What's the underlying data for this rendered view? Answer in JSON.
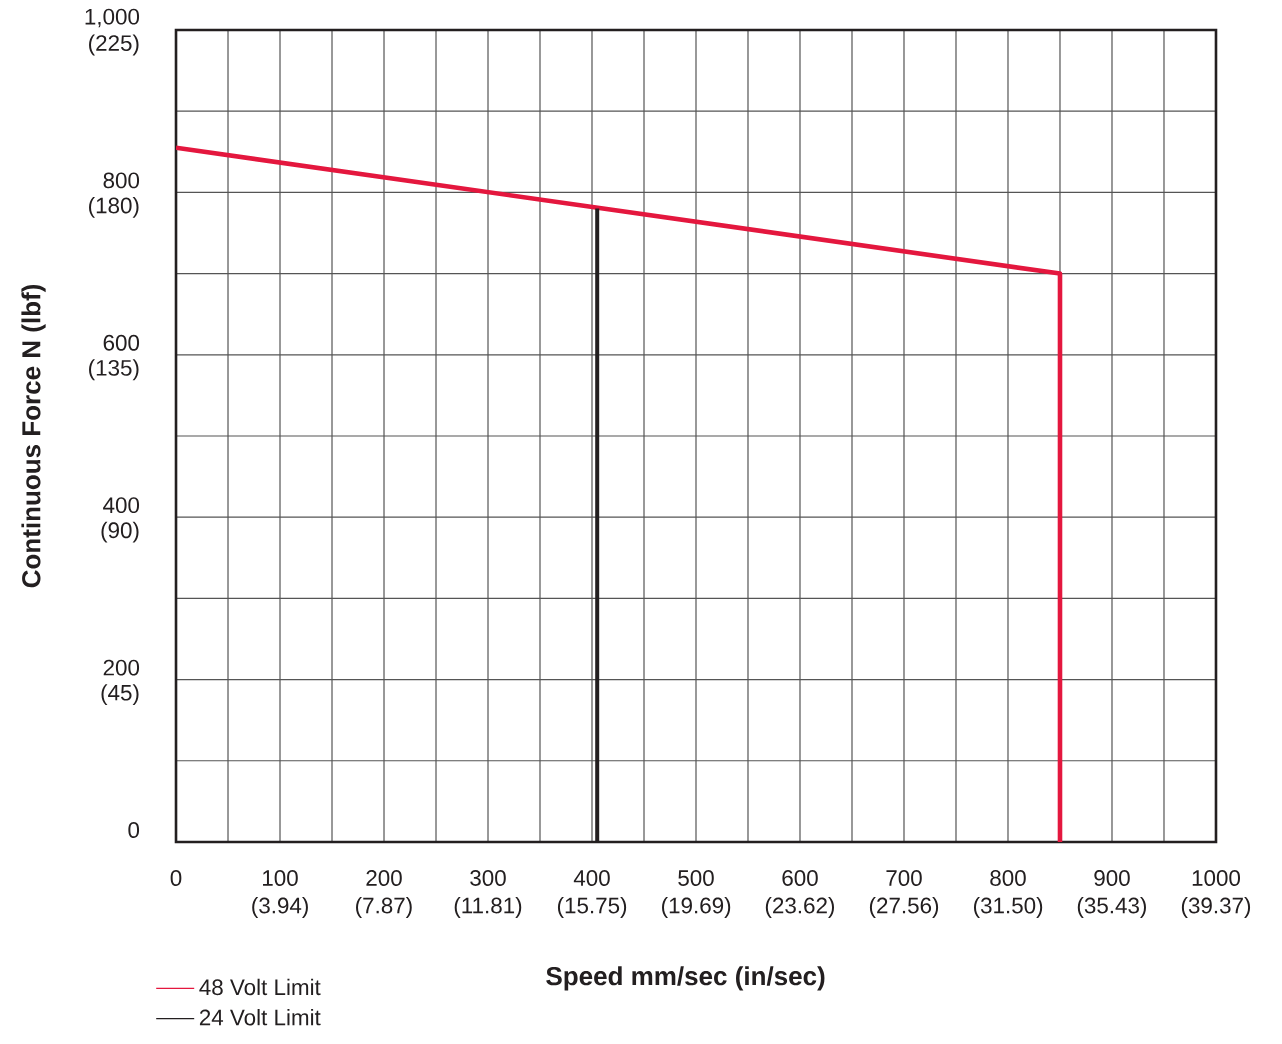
{
  "chart_data": {
    "type": "line",
    "xlabel": "Speed mm/sec (in/sec)",
    "ylabel": "Continuous Force N (lbf)",
    "series": [
      {
        "name": "48 Volt Limit",
        "color": "#e4173e",
        "x": [
          0,
          850,
          850
        ],
        "values": [
          855,
          700,
          0
        ]
      },
      {
        "name": "24 Volt Limit",
        "color": "#231f20",
        "x": [
          405,
          405
        ],
        "values": [
          780,
          0
        ]
      }
    ],
    "xlim": [
      0,
      1000
    ],
    "ylim": [
      0,
      1000
    ],
    "xticks": [
      0,
      {
        "value": 50,
        "label": null
      },
      100,
      {
        "value": 150,
        "label": null
      },
      200,
      {
        "value": 250,
        "label": null
      },
      300,
      {
        "value": 350,
        "label": null
      },
      400,
      {
        "value": 450,
        "label": null
      },
      500,
      {
        "value": 550,
        "label": null
      },
      600,
      {
        "value": 650,
        "label": null
      },
      700,
      {
        "value": 750,
        "label": null
      },
      800,
      {
        "value": 850,
        "label": null
      },
      900,
      {
        "value": 950,
        "label": null
      },
      1000
    ],
    "yticks": [
      0,
      {
        "value": 100,
        "label": null
      },
      200,
      {
        "value": 300,
        "label": null
      },
      400,
      {
        "value": 500,
        "label": null
      },
      600,
      {
        "value": 700,
        "label": null
      },
      800,
      {
        "value": 900,
        "label": null
      },
      {
        "value": 1000,
        "label": "1,000"
      }
    ],
    "x2lim": [
      0,
      39.37
    ],
    "x2ticks": [
      {
        "value": 3.94,
        "label": "(3.94)"
      },
      {
        "value": 7.87,
        "label": "(7.87)"
      },
      {
        "value": 11.81,
        "label": "(11.81)"
      },
      {
        "value": 15.75,
        "label": "(15.75)"
      },
      {
        "value": 19.69,
        "label": "(19.69)"
      },
      {
        "value": 23.62,
        "label": "(23.62)"
      },
      {
        "value": 27.56,
        "label": "(27.56)"
      },
      {
        "value": 31.5,
        "label": "(31.50)"
      },
      {
        "value": 35.43,
        "label": "(35.43)"
      },
      {
        "value": 39.37,
        "label": "(39.37)"
      }
    ],
    "y2lim": [
      0,
      225
    ],
    "y2ticks": [
      {
        "value": 45,
        "label": "(45)"
      },
      {
        "value": 90,
        "label": "(90)"
      },
      {
        "value": 135,
        "label": "(135)"
      },
      {
        "value": 180,
        "label": "(180)"
      },
      {
        "value": 225,
        "label": "(225)"
      }
    ],
    "grid": true,
    "legend": "bottom left",
    "marker": "none",
    "line_style": "solid"
  }
}
